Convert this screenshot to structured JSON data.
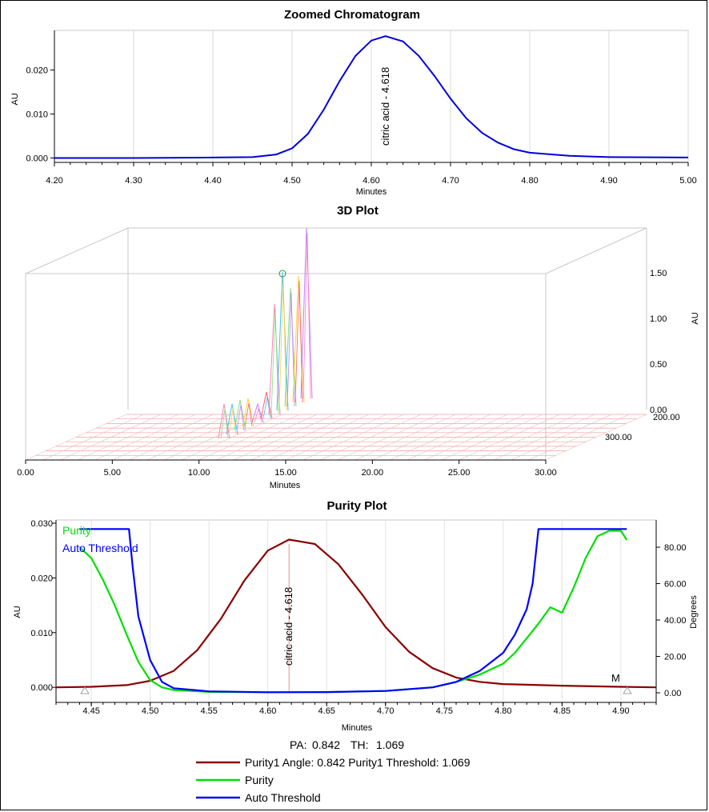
{
  "chart_data": [
    {
      "type": "line",
      "title": "Zoomed Chromatogram",
      "xlabel": "Minutes",
      "ylabel": "AU",
      "xlim": [
        4.2,
        5.0
      ],
      "ylim": [
        -0.001,
        0.029
      ],
      "x_ticks": [
        "4.20",
        "4.30",
        "4.40",
        "4.50",
        "4.60",
        "4.70",
        "4.80",
        "4.90",
        "5.00"
      ],
      "y_ticks": [
        "0.000",
        "0.010",
        "0.020"
      ],
      "peak_label": "citric acid - 4.618",
      "series": [
        {
          "color": "#0000dd",
          "x": [
            4.2,
            4.3,
            4.4,
            4.45,
            4.48,
            4.5,
            4.52,
            4.54,
            4.56,
            4.58,
            4.6,
            4.618,
            4.64,
            4.66,
            4.68,
            4.7,
            4.72,
            4.74,
            4.76,
            4.78,
            4.8,
            4.85,
            4.9,
            5.0
          ],
          "y": [
            0.0,
            0.0,
            0.0001,
            0.0002,
            0.0008,
            0.0022,
            0.0055,
            0.011,
            0.0175,
            0.0232,
            0.0267,
            0.0277,
            0.0265,
            0.0232,
            0.0186,
            0.0135,
            0.009,
            0.0057,
            0.0035,
            0.002,
            0.0012,
            0.0005,
            0.0002,
            0.0001
          ]
        }
      ]
    },
    {
      "type": "area",
      "title": "3D Plot",
      "xlabel": "Minutes",
      "zlabel": "AU",
      "x_ticks": [
        "0.00",
        "5.00",
        "10.00",
        "15.00",
        "20.00",
        "25.00",
        "30.00"
      ],
      "z_ticks": [
        "0.00",
        "0.50",
        "1.00",
        "1.50"
      ],
      "wavelength_ticks": [
        "200.00",
        "300.00"
      ]
    },
    {
      "type": "line",
      "title": "Purity Plot",
      "xlabel": "Minutes",
      "ylabel": "AU",
      "y2label": "Degrees",
      "xlim": [
        4.42,
        4.93
      ],
      "ylim": [
        -0.001,
        0.03
      ],
      "y2lim": [
        -3,
        93
      ],
      "x_ticks": [
        "4.45",
        "4.50",
        "4.55",
        "4.60",
        "4.65",
        "4.70",
        "4.75",
        "4.80",
        "4.85",
        "4.90"
      ],
      "y_ticks": [
        "0.000",
        "0.010",
        "0.020",
        "0.030"
      ],
      "y2_ticks": [
        "0.00",
        "20.00",
        "40.00",
        "60.00",
        "80.00"
      ],
      "peak_label": "citric acid - 4.618",
      "marker": "M",
      "summary": {
        "pa_label": "PA:",
        "pa_value": "0.842",
        "th_label": "TH:",
        "th_value": "1.069"
      },
      "series": [
        {
          "name": "Purity1 Angle: 0.842 Purity1 Threshold: 1.069",
          "color": "#8b0000",
          "axis": "left",
          "x": [
            4.42,
            4.45,
            4.48,
            4.5,
            4.52,
            4.54,
            4.56,
            4.58,
            4.6,
            4.618,
            4.64,
            4.66,
            4.68,
            4.7,
            4.72,
            4.74,
            4.76,
            4.78,
            4.8,
            4.85,
            4.9,
            4.93
          ],
          "y": [
            0.0,
            0.0001,
            0.0004,
            0.0012,
            0.003,
            0.0068,
            0.0125,
            0.0195,
            0.025,
            0.027,
            0.0262,
            0.0225,
            0.017,
            0.011,
            0.0065,
            0.0035,
            0.0018,
            0.001,
            0.0006,
            0.0003,
            0.0001,
            0.0
          ]
        },
        {
          "name": "Purity",
          "color": "#00e000",
          "axis": "right",
          "x": [
            4.44,
            4.45,
            4.46,
            4.47,
            4.48,
            4.49,
            4.5,
            4.51,
            4.52,
            4.55,
            4.6,
            4.65,
            4.7,
            4.74,
            4.76,
            4.78,
            4.8,
            4.81,
            4.82,
            4.83,
            4.84,
            4.85,
            4.86,
            4.87,
            4.88,
            4.89,
            4.9,
            4.905
          ],
          "y": [
            80,
            74,
            62,
            48,
            32,
            17,
            7,
            3,
            1.5,
            0.5,
            0.3,
            0.4,
            1,
            3,
            6,
            10,
            16,
            22,
            30,
            38,
            47,
            44,
            58,
            74,
            86,
            89,
            89,
            84
          ]
        },
        {
          "name": "Auto Threshold",
          "color": "#0000ff",
          "axis": "right",
          "x": [
            4.44,
            4.482,
            4.485,
            4.49,
            4.5,
            4.51,
            4.52,
            4.55,
            4.6,
            4.65,
            4.7,
            4.74,
            4.76,
            4.78,
            4.8,
            4.81,
            4.82,
            4.825,
            4.83,
            4.905
          ],
          "y": [
            90,
            90,
            70,
            42,
            18,
            6,
            2.5,
            0.8,
            0.3,
            0.4,
            1,
            3,
            6,
            12,
            22,
            32,
            46,
            60,
            90,
            90
          ]
        }
      ]
    }
  ]
}
